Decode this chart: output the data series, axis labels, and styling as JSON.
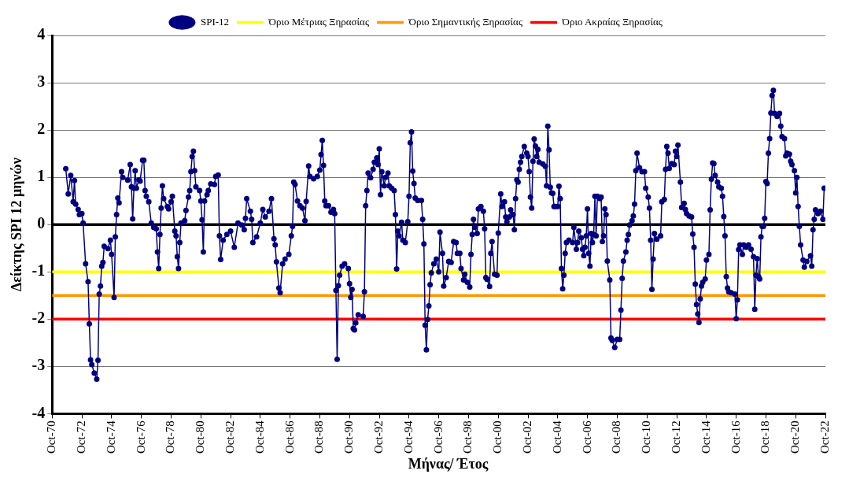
{
  "chart_data": {
    "type": "line",
    "xlabel": "Μήνας/ Έτος",
    "ylabel": "Δείκτης SPI 12 μηνών",
    "xlim": [
      "1970-10",
      "2022-10"
    ],
    "ylim": [
      -4,
      4
    ],
    "yticks": [
      -4,
      -3,
      -2,
      -1,
      0,
      1,
      2,
      3,
      4
    ],
    "xticks": [
      {
        "value": "1970-10",
        "label": "Oct-70"
      },
      {
        "value": "1972-10",
        "label": "Oct-72"
      },
      {
        "value": "1974-10",
        "label": "Oct-74"
      },
      {
        "value": "1976-10",
        "label": "Oct-76"
      },
      {
        "value": "1978-10",
        "label": "Oct-78"
      },
      {
        "value": "1980-10",
        "label": "Oct-80"
      },
      {
        "value": "1982-10",
        "label": "Oct-82"
      },
      {
        "value": "1984-10",
        "label": "Oct-84"
      },
      {
        "value": "1986-10",
        "label": "Oct-86"
      },
      {
        "value": "1988-10",
        "label": "Oct-88"
      },
      {
        "value": "1990-10",
        "label": "Oct-90"
      },
      {
        "value": "1992-10",
        "label": "Oct-92"
      },
      {
        "value": "1994-10",
        "label": "Oct-94"
      },
      {
        "value": "1996-10",
        "label": "Oct-96"
      },
      {
        "value": "1998-10",
        "label": "Oct-98"
      },
      {
        "value": "2000-10",
        "label": "Oct-00"
      },
      {
        "value": "2002-10",
        "label": "Oct-02"
      },
      {
        "value": "2004-10",
        "label": "Oct-04"
      },
      {
        "value": "2006-10",
        "label": "Oct-06"
      },
      {
        "value": "2008-10",
        "label": "Oct-08"
      },
      {
        "value": "2010-10",
        "label": "Oct-10"
      },
      {
        "value": "2012-10",
        "label": "Oct-12"
      },
      {
        "value": "2014-10",
        "label": "Oct-14"
      },
      {
        "value": "2016-10",
        "label": "Oct-16"
      },
      {
        "value": "2018-10",
        "label": "Oct-18"
      },
      {
        "value": "2020-10",
        "label": "Oct-20"
      },
      {
        "value": "2022-10",
        "label": "Oct-22"
      }
    ],
    "grid": "y",
    "legend": "top",
    "marker": "circle",
    "ref_lines": [
      {
        "axis": "y",
        "value": 0,
        "color": "#000000"
      },
      {
        "axis": "y",
        "value": -1,
        "label": "Όριο Μέτριας Ξηρασίας",
        "color": "#ffff00"
      },
      {
        "axis": "y",
        "value": -1.5,
        "label": "Όριο Σημαντικής Ξηρασίας",
        "color": "#ff9900"
      },
      {
        "axis": "y",
        "value": -2,
        "label": "Όριο Ακραίας Ξηρασίας",
        "color": "#ff0000"
      }
    ],
    "series": [
      {
        "name": "SPI-12",
        "color": "#000080",
        "x": [
          "1971-09",
          "1971-11",
          "1972-01",
          "1972-03",
          "1972-04",
          "1972-05",
          "1972-07",
          "1972-08",
          "1972-10",
          "1972-11",
          "1973-01",
          "1973-03",
          "1973-04",
          "1973-05",
          "1973-06",
          "1973-08",
          "1973-10",
          "1973-11",
          "1973-12",
          "1974-01",
          "1974-02",
          "1974-03",
          "1974-04",
          "1974-07",
          "1974-09",
          "1974-10",
          "1974-12",
          "1975-01",
          "1975-02",
          "1975-03",
          "1975-04",
          "1975-06",
          "1975-07",
          "1975-11",
          "1976-01",
          "1976-02",
          "1976-03",
          "1976-04",
          "1976-05",
          "1976-06",
          "1976-08",
          "1976-09",
          "1976-11",
          "1976-12",
          "1977-01",
          "1977-02",
          "1977-04",
          "1977-06",
          "1977-08",
          "1977-10",
          "1977-11",
          "1977-12",
          "1978-01",
          "1978-02",
          "1978-03",
          "1978-04",
          "1978-07",
          "1978-08",
          "1978-10",
          "1978-11",
          "1979-01",
          "1979-02",
          "1979-03",
          "1979-04",
          "1979-05",
          "1979-06",
          "1979-09",
          "1979-10",
          "1979-12",
          "1980-01",
          "1980-02",
          "1980-03",
          "1980-04",
          "1980-05",
          "1980-06",
          "1980-09",
          "1980-10",
          "1980-11",
          "1980-12",
          "1981-01",
          "1981-03",
          "1981-04",
          "1981-06",
          "1981-09",
          "1981-10",
          "1981-12",
          "1982-01",
          "1982-02",
          "1982-04",
          "1982-07",
          "1982-10",
          "1983-01",
          "1983-04",
          "1983-07",
          "1983-09",
          "1983-10",
          "1983-11",
          "1984-02",
          "1984-03",
          "1984-04",
          "1984-07",
          "1984-10",
          "1984-12",
          "1985-02",
          "1985-05",
          "1985-07",
          "1985-09",
          "1985-10",
          "1985-11",
          "1986-01",
          "1986-02",
          "1986-04",
          "1986-06",
          "1986-09",
          "1986-11",
          "1986-12",
          "1987-01",
          "1987-02",
          "1987-04",
          "1987-06",
          "1987-08",
          "1987-10",
          "1987-11",
          "1988-01",
          "1988-02",
          "1988-05",
          "1988-08",
          "1988-10",
          "1988-11",
          "1988-12",
          "1989-01",
          "1989-02",
          "1989-03",
          "1989-05",
          "1989-07",
          "1989-09",
          "1989-10",
          "1989-11",
          "1989-12",
          "1990-01",
          "1990-02",
          "1990-04",
          "1990-06",
          "1990-09",
          "1990-10",
          "1990-11",
          "1990-12",
          "1991-01",
          "1991-02",
          "1991-03",
          "1991-05",
          "1991-09",
          "1991-10",
          "1991-11",
          "1991-12",
          "1992-01",
          "1992-03",
          "1992-05",
          "1992-06",
          "1992-08",
          "1992-09",
          "1992-10",
          "1992-11",
          "1992-12",
          "1993-02",
          "1993-03",
          "1993-05",
          "1993-06",
          "1993-08",
          "1993-10",
          "1993-11",
          "1993-12",
          "1994-01",
          "1994-02",
          "1994-04",
          "1994-05",
          "1994-07",
          "1994-09",
          "1994-10",
          "1994-11",
          "1994-12",
          "1995-01",
          "1995-02",
          "1995-03",
          "1995-05",
          "1995-08",
          "1995-09",
          "1995-10",
          "1995-11",
          "1995-12",
          "1996-01",
          "1996-02",
          "1996-03",
          "1996-04",
          "1996-06",
          "1996-08",
          "1996-10",
          "1996-11",
          "1997-01",
          "1997-02",
          "1997-04",
          "1997-06",
          "1997-08",
          "1997-10",
          "1997-12",
          "1998-01",
          "1998-03",
          "1998-04",
          "1998-06",
          "1998-07",
          "1998-09",
          "1998-11",
          "1998-12",
          "1999-01",
          "1999-02",
          "1999-03",
          "1999-05",
          "1999-06",
          "1999-08",
          "1999-10",
          "1999-11",
          "1999-12",
          "2000-01",
          "2000-03",
          "2000-04",
          "2000-05",
          "2000-07",
          "2000-09",
          "2000-10",
          "2000-12",
          "2001-01",
          "2001-03",
          "2001-04",
          "2001-05",
          "2001-07",
          "2001-08",
          "2001-10",
          "2001-11",
          "2001-12",
          "2002-01",
          "2002-02",
          "2002-03",
          "2002-04",
          "2002-05",
          "2002-07",
          "2002-09",
          "2002-10",
          "2002-11",
          "2002-12",
          "2003-01",
          "2003-02",
          "2003-03",
          "2003-04",
          "2003-05",
          "2003-06",
          "2003-07",
          "2003-10",
          "2003-12",
          "2004-01",
          "2004-02",
          "2004-03",
          "2004-04",
          "2004-05",
          "2004-06",
          "2004-07",
          "2004-08",
          "2004-10",
          "2004-11",
          "2004-12",
          "2005-01",
          "2005-02",
          "2005-03",
          "2005-04",
          "2005-05",
          "2005-07",
          "2005-10",
          "2005-11",
          "2006-01",
          "2006-02",
          "2006-03",
          "2006-05",
          "2006-06",
          "2006-07",
          "2006-08",
          "2006-09",
          "2006-10",
          "2006-11",
          "2006-12",
          "2007-01",
          "2007-02",
          "2007-03",
          "2007-04",
          "2007-05",
          "2007-06",
          "2007-08",
          "2007-09",
          "2007-10",
          "2007-11",
          "2007-12",
          "2008-01",
          "2008-02",
          "2008-04",
          "2008-05",
          "2008-06",
          "2008-08",
          "2008-10",
          "2008-12",
          "2009-01",
          "2009-02",
          "2009-03",
          "2009-05",
          "2009-06",
          "2009-07",
          "2009-08",
          "2009-10",
          "2009-11",
          "2009-12",
          "2010-01",
          "2010-02",
          "2010-04",
          "2010-06",
          "2010-08",
          "2010-09",
          "2010-11",
          "2010-12",
          "2011-01",
          "2011-02",
          "2011-03",
          "2011-04",
          "2011-06",
          "2011-09",
          "2011-10",
          "2011-12",
          "2012-01",
          "2012-02",
          "2012-03",
          "2012-04",
          "2012-06",
          "2012-08",
          "2012-09",
          "2012-10",
          "2012-11",
          "2013-01",
          "2013-02",
          "2013-04",
          "2013-05",
          "2013-06",
          "2013-08",
          "2013-10",
          "2013-11",
          "2013-12",
          "2014-01",
          "2014-02",
          "2014-03",
          "2014-04",
          "2014-05",
          "2014-06",
          "2014-07",
          "2014-09",
          "2014-10",
          "2014-12",
          "2015-01",
          "2015-02",
          "2015-03",
          "2015-04",
          "2015-05",
          "2015-07",
          "2015-08",
          "2015-10",
          "2015-11",
          "2015-12",
          "2016-01",
          "2016-02",
          "2016-03",
          "2016-04",
          "2016-06",
          "2016-09",
          "2016-10",
          "2016-11",
          "2016-12",
          "2017-01",
          "2017-03",
          "2017-04",
          "2017-06",
          "2017-08",
          "2017-10",
          "2017-12",
          "2018-01",
          "2018-02",
          "2018-03",
          "2018-04",
          "2018-05",
          "2018-06",
          "2018-07",
          "2018-08",
          "2018-09",
          "2018-10",
          "2018-11",
          "2018-12",
          "2019-01",
          "2019-02",
          "2019-03",
          "2019-04",
          "2019-05",
          "2019-07",
          "2019-09",
          "2019-10",
          "2019-11",
          "2020-01",
          "2020-02",
          "2020-03",
          "2020-05",
          "2020-06",
          "2020-07",
          "2020-09",
          "2020-10",
          "2020-11",
          "2020-12",
          "2021-01",
          "2021-02",
          "2021-04",
          "2021-05",
          "2021-07",
          "2021-10",
          "2021-11",
          "2021-12",
          "2022-01",
          "2022-02",
          "2022-04",
          "2022-06",
          "2022-08",
          "2022-09"
        ],
        "values": [
          1.18,
          0.65,
          1.04,
          0.48,
          0.93,
          0.43,
          0.32,
          0.21,
          0.23,
          0.03,
          -0.83,
          -1.21,
          -2.1,
          -2.86,
          -2.96,
          -3.14,
          -3.27,
          -2.87,
          -1.47,
          -1.3,
          -0.88,
          -0.8,
          -0.46,
          -0.51,
          -0.33,
          -0.63,
          -1.54,
          -0.26,
          0.21,
          0.56,
          0.46,
          1.12,
          1.0,
          0.94,
          1.27,
          0.8,
          0.12,
          0.77,
          1.14,
          0.77,
          0.95,
          0.92,
          1.36,
          1.36,
          0.72,
          0.6,
          0.48,
          0.03,
          -0.06,
          -0.09,
          -0.58,
          -0.93,
          -0.21,
          0.35,
          0.82,
          0.55,
          0.38,
          0.33,
          0.48,
          0.6,
          -0.14,
          -0.24,
          -0.68,
          -0.93,
          -0.38,
          0.03,
          0.08,
          0.3,
          0.58,
          0.72,
          1.12,
          1.44,
          1.55,
          1.14,
          0.8,
          0.72,
          0.5,
          0.1,
          -0.58,
          0.5,
          0.63,
          0.72,
          0.86,
          0.85,
          1.02,
          1.05,
          -0.24,
          -0.74,
          -0.33,
          -0.21,
          -0.14,
          -0.48,
          0.03,
          -0.01,
          -0.11,
          0.13,
          0.55,
          0.28,
          0.11,
          -0.38,
          -0.26,
          0.03,
          0.32,
          0.16,
          0.28,
          0.55,
          -0.3,
          -0.43,
          -0.79,
          -1.34,
          -1.44,
          -0.83,
          -0.73,
          -0.63,
          -0.24,
          -0.04,
          0.9,
          0.85,
          0.5,
          0.4,
          0.35,
          0.08,
          0.49,
          1.24,
          1.02,
          0.97,
          1.02,
          1.15,
          1.48,
          1.78,
          1.25,
          0.5,
          0.4,
          0.4,
          0.26,
          0.32,
          0.23,
          -1.39,
          -2.85,
          -1.29,
          -1.07,
          -0.88,
          -0.83,
          -0.93,
          -1.25,
          -1.54,
          -1.37,
          -2.2,
          -2.23,
          -2.08,
          -1.91,
          -1.94,
          -1.42,
          0.4,
          0.72,
          1.09,
          0.99,
          1.17,
          1.32,
          1.41,
          1.27,
          1.6,
          0.63,
          1.12,
          0.82,
          1.0,
          1.09,
          0.82,
          0.77,
          0.72,
          0.21,
          -0.94,
          -0.14,
          -0.24,
          0.05,
          -0.33,
          -0.38,
          0.06,
          0.6,
          1.73,
          1.96,
          1.13,
          0.87,
          0.56,
          0.51,
          0.51,
          0.11,
          -0.41,
          -2.13,
          -2.65,
          -2.01,
          -1.72,
          -1.27,
          -1.02,
          -0.83,
          -0.73,
          -1.0,
          -0.16,
          -0.61,
          -1.3,
          -1.12,
          -0.78,
          -0.8,
          -0.36,
          -0.38,
          -0.61,
          -0.61,
          -0.93,
          -1.17,
          -1.05,
          -1.22,
          -1.32,
          -0.63,
          -0.21,
          0.11,
          -0.06,
          -0.19,
          0.33,
          0.38,
          0.28,
          -0.09,
          -1.12,
          -1.16,
          -1.31,
          -0.61,
          -0.36,
          -1.05,
          -1.07,
          -0.18,
          0.65,
          0.38,
          0.48,
          0.16,
          0.06,
          0.16,
          0.31,
          0.21,
          -0.11,
          0.55,
          0.95,
          0.9,
          1.17,
          1.32,
          1.44,
          1.65,
          1.51,
          1.44,
          1.12,
          0.58,
          0.35,
          1.34,
          1.81,
          1.66,
          1.44,
          1.59,
          1.32,
          1.28,
          1.23,
          0.82,
          2.08,
          1.58,
          0.79,
          0.67,
          0.66,
          0.38,
          0.38,
          0.38,
          0.81,
          0.55,
          -0.93,
          -1.36,
          -1.07,
          -0.61,
          -0.38,
          -0.33,
          -0.38,
          -0.06,
          -0.52,
          -0.38,
          -0.14,
          -0.28,
          -0.52,
          -0.66,
          -0.48,
          -0.24,
          0.33,
          -0.61,
          -0.88,
          -0.19,
          -0.38,
          -0.21,
          0.6,
          -0.24,
          0.6,
          0.55,
          0.58,
          -0.36,
          -0.24,
          0.33,
          0.21,
          -0.77,
          -1.17,
          -2.4,
          -2.45,
          -2.6,
          -2.43,
          -2.43,
          -1.81,
          -1.14,
          -0.77,
          -0.58,
          -0.33,
          -0.21,
          -0.01,
          0.08,
          0.18,
          0.43,
          1.14,
          1.51,
          1.2,
          1.12,
          1.12,
          0.77,
          0.58,
          0.35,
          -0.33,
          -1.37,
          -0.73,
          -0.19,
          -0.31,
          -0.24,
          0.48,
          0.53,
          1.17,
          1.65,
          1.51,
          1.19,
          1.29,
          1.27,
          1.55,
          1.44,
          1.68,
          0.9,
          0.36,
          0.45,
          0.32,
          0.23,
          0.18,
          0.16,
          -0.2,
          -0.48,
          -1.26,
          -1.69,
          -1.89,
          -2.07,
          -1.57,
          -1.3,
          -1.22,
          -1.15,
          -0.75,
          -0.63,
          0.31,
          0.96,
          1.3,
          1.29,
          1.04,
          0.9,
          0.8,
          0.77,
          0.6,
          0.17,
          -0.24,
          -1.1,
          -1.34,
          -1.42,
          -1.44,
          -1.47,
          -1.99,
          -1.59,
          -0.53,
          -0.43,
          -0.63,
          -0.43,
          -0.48,
          -0.43,
          -0.52,
          -0.68,
          -1.79,
          -1.07,
          -0.72,
          -1.1,
          -1.15,
          -0.26,
          -0.04,
          -0.04,
          0.13,
          0.91,
          0.87,
          1.51,
          1.82,
          2.36,
          2.73,
          2.84,
          2.35,
          2.29,
          2.35,
          2.08,
          1.86,
          1.82,
          1.45,
          1.51,
          1.49,
          1.34,
          1.27,
          1.14,
          0.67,
          1.0,
          0.38,
          -0.04,
          -0.43,
          -0.75,
          -0.9,
          -0.78,
          -0.66,
          -0.88,
          -0.11,
          0.11,
          0.31,
          0.23,
          0.28,
          0.11,
          0.77
        ]
      }
    ]
  }
}
